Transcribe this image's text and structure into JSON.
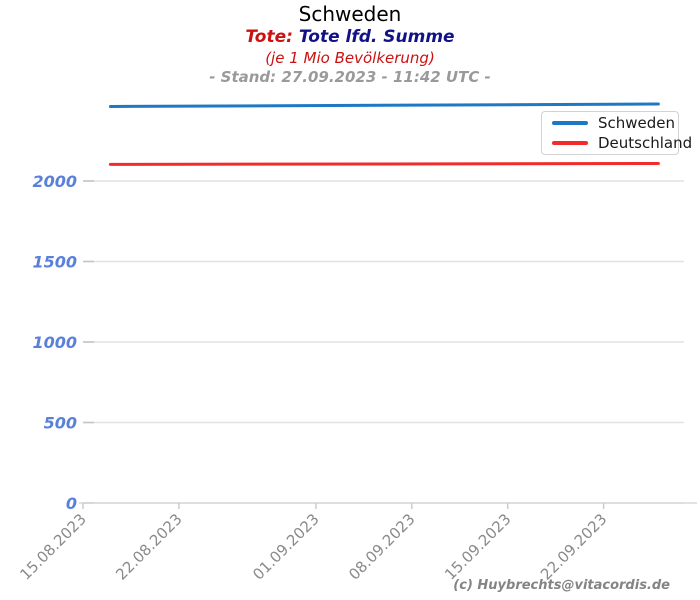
{
  "header": {
    "title": "Schweden",
    "metric_label": "Tote:",
    "metric_value": " Tote lfd. Summe",
    "unit_note": "(je 1 Mio Bevölkerung)",
    "status_line": "- Stand: 27.09.2023 - 11:42 UTC -"
  },
  "footer": {
    "credit": "(c) Huybrechts@vitacordis.de"
  },
  "colors": {
    "title_red": "#cc1111",
    "metric_navy": "#121287",
    "status_gray": "#9a9a9a",
    "ytick_blue": "#5b80d9",
    "xtick_gray": "#8a8a8a",
    "grid_gray": "#e2e2e2",
    "axis_gray": "#d8d8d8",
    "schweden_blue": "#1e78c4",
    "deutschland_red": "#f22c2c"
  },
  "chart_data": {
    "type": "line",
    "title": "Schweden",
    "subtitle": "Tote: Tote lfd. Summe (je 1 Mio Bevölkerung)",
    "as_of": "27.09.2023 - 11:42 UTC",
    "grid": true,
    "legend_position": "upper right",
    "xlabel": "",
    "ylabel": "",
    "ylim": [
      0,
      2560
    ],
    "y_ticks": [
      0,
      500,
      1000,
      1500,
      2000
    ],
    "x_tick_labels": [
      "15.08.2023",
      "22.08.2023",
      "01.09.2023",
      "08.09.2023",
      "15.09.2023",
      "22.09.2023"
    ],
    "series": [
      {
        "name": "Schweden",
        "color": "#1e78c4",
        "points": [
          {
            "date": "17.08.2023",
            "value": 2463
          },
          {
            "date": "26.09.2023",
            "value": 2478
          }
        ]
      },
      {
        "name": "Deutschland",
        "color": "#f22c2c",
        "points": [
          {
            "date": "17.08.2023",
            "value": 2103
          },
          {
            "date": "26.09.2023",
            "value": 2109
          }
        ]
      }
    ]
  }
}
